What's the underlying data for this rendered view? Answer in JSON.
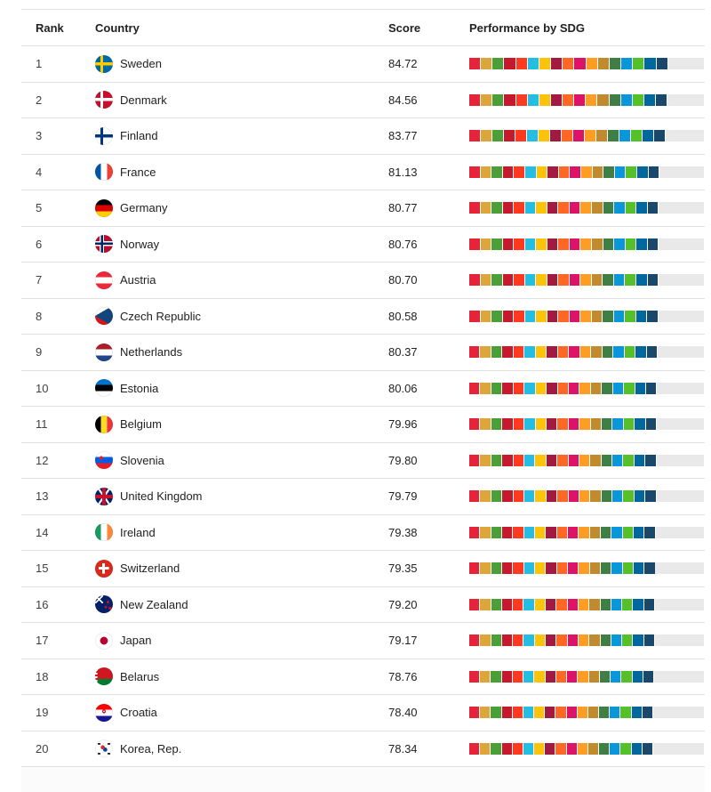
{
  "table": {
    "headers": {
      "rank": "Rank",
      "country": "Country",
      "score": "Score",
      "performance": "Performance by SDG"
    },
    "track_color": "#e9e9e9",
    "sdg_colors": [
      "#E5243B",
      "#DDA63A",
      "#4C9F38",
      "#C5192D",
      "#FF3A21",
      "#26BDE2",
      "#FCC30B",
      "#A21942",
      "#FD6925",
      "#DD1367",
      "#FD9D24",
      "#BF8B2E",
      "#3F7E44",
      "#0A97D9",
      "#56C02B",
      "#00689D",
      "#19486A"
    ],
    "rows": [
      {
        "rank": "1",
        "country": "Sweden",
        "flag": "se",
        "score": "84.72"
      },
      {
        "rank": "2",
        "country": "Denmark",
        "flag": "dk",
        "score": "84.56"
      },
      {
        "rank": "3",
        "country": "Finland",
        "flag": "fi",
        "score": "83.77"
      },
      {
        "rank": "4",
        "country": "France",
        "flag": "fr",
        "score": "81.13"
      },
      {
        "rank": "5",
        "country": "Germany",
        "flag": "de",
        "score": "80.77"
      },
      {
        "rank": "6",
        "country": "Norway",
        "flag": "no",
        "score": "80.76"
      },
      {
        "rank": "7",
        "country": "Austria",
        "flag": "at",
        "score": "80.70"
      },
      {
        "rank": "8",
        "country": "Czech Republic",
        "flag": "cz",
        "score": "80.58"
      },
      {
        "rank": "9",
        "country": "Netherlands",
        "flag": "nl",
        "score": "80.37"
      },
      {
        "rank": "10",
        "country": "Estonia",
        "flag": "ee",
        "score": "80.06"
      },
      {
        "rank": "11",
        "country": "Belgium",
        "flag": "be",
        "score": "79.96"
      },
      {
        "rank": "12",
        "country": "Slovenia",
        "flag": "si",
        "score": "79.80"
      },
      {
        "rank": "13",
        "country": "United Kingdom",
        "flag": "gb",
        "score": "79.79"
      },
      {
        "rank": "14",
        "country": "Ireland",
        "flag": "ie",
        "score": "79.38"
      },
      {
        "rank": "15",
        "country": "Switzerland",
        "flag": "ch",
        "score": "79.35"
      },
      {
        "rank": "16",
        "country": "New Zealand",
        "flag": "nz",
        "score": "79.20"
      },
      {
        "rank": "17",
        "country": "Japan",
        "flag": "jp",
        "score": "79.17"
      },
      {
        "rank": "18",
        "country": "Belarus",
        "flag": "by",
        "score": "78.76"
      },
      {
        "rank": "19",
        "country": "Croatia",
        "flag": "hr",
        "score": "78.40"
      },
      {
        "rank": "20",
        "country": "Korea, Rep.",
        "flag": "kr",
        "score": "78.34"
      }
    ]
  }
}
